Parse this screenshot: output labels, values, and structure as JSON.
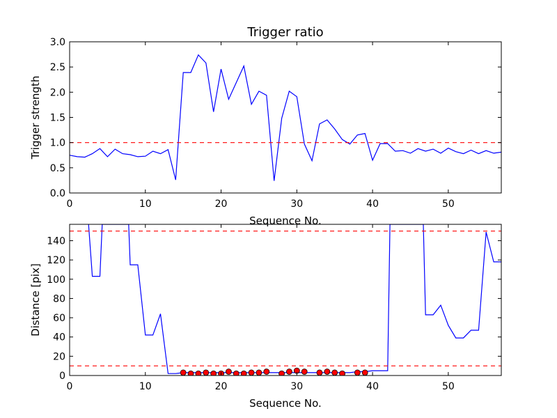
{
  "chart_data": [
    {
      "type": "line",
      "title": "Trigger ratio",
      "xlabel": "Sequence No.",
      "ylabel": "Trigger strength",
      "xlim": [
        0,
        57
      ],
      "ylim": [
        0,
        3.0
      ],
      "xticks": [
        0,
        10,
        20,
        30,
        40,
        50
      ],
      "xtick_labels": [
        "0",
        "10",
        "20",
        "30",
        "40",
        "50"
      ],
      "yticks": [
        0,
        0.5,
        1.0,
        1.5,
        2.0,
        2.5,
        3.0
      ],
      "ytick_labels": [
        "0.0",
        "0.5",
        "1.0",
        "1.5",
        "2.0",
        "2.5",
        "3.0"
      ],
      "grid": false,
      "series": [
        {
          "color": "#0000ff",
          "x": [
            0,
            1,
            2,
            3,
            4,
            5,
            6,
            7,
            8,
            9,
            10,
            11,
            12,
            13,
            14,
            15,
            16,
            17,
            18,
            19,
            20,
            21,
            22,
            23,
            24,
            25,
            26,
            27,
            28,
            29,
            30,
            31,
            32,
            33,
            34,
            35,
            36,
            37,
            38,
            39,
            40,
            41,
            42,
            43,
            44,
            45,
            46,
            47,
            48,
            49,
            50,
            51,
            52,
            53,
            54,
            55,
            56,
            57
          ],
          "y": [
            0.75,
            0.72,
            0.71,
            0.78,
            0.88,
            0.72,
            0.87,
            0.78,
            0.76,
            0.72,
            0.73,
            0.83,
            0.78,
            0.86,
            0.26,
            2.39,
            2.39,
            2.74,
            2.58,
            1.61,
            2.46,
            1.86,
            2.19,
            2.52,
            1.76,
            2.02,
            1.94,
            0.24,
            1.48,
            2.02,
            1.91,
            0.97,
            0.64,
            1.37,
            1.45,
            1.27,
            1.06,
            0.97,
            1.15,
            1.18,
            0.65,
            0.98,
            0.98,
            0.83,
            0.84,
            0.79,
            0.88,
            0.83,
            0.87,
            0.79,
            0.89,
            0.82,
            0.78,
            0.85,
            0.78,
            0.84,
            0.79,
            0.81
          ]
        }
      ],
      "hlines": [
        {
          "y": 1.0,
          "color": "#ff0000",
          "style": "dashed"
        }
      ]
    },
    {
      "type": "line",
      "title": "",
      "xlabel": "Sequence No.",
      "ylabel": "Distance [pix]",
      "xlim": [
        0,
        57
      ],
      "ylim": [
        0,
        157
      ],
      "xticks": [
        0,
        10,
        20,
        30,
        40,
        50
      ],
      "xtick_labels": [
        "0",
        "10",
        "20",
        "30",
        "40",
        "50"
      ],
      "yticks": [
        0,
        20,
        40,
        60,
        80,
        100,
        120,
        140
      ],
      "ytick_labels": [
        "0",
        "20",
        "40",
        "60",
        "80",
        "100",
        "120",
        "140"
      ],
      "grid": false,
      "series": [
        {
          "color": "#0000ff",
          "x": [
            2.5,
            3,
            4,
            4.3,
            7.8,
            8,
            9,
            10,
            11,
            12,
            13,
            14,
            15,
            16,
            17,
            18,
            19,
            20,
            21,
            22,
            23,
            24,
            25,
            26,
            27,
            28,
            29,
            30,
            31,
            32,
            33,
            34,
            35,
            36,
            37,
            38,
            39,
            40,
            41,
            42,
            42.3,
            46.7,
            47,
            48,
            49,
            50,
            51,
            52,
            53,
            54,
            55,
            56,
            57
          ],
          "y": [
            157,
            103,
            103,
            157,
            157,
            115,
            115,
            42,
            42,
            64,
            2,
            2,
            3,
            3,
            3,
            3,
            3,
            3,
            3,
            3,
            3,
            3,
            3,
            3,
            3,
            3,
            3,
            3,
            3,
            3,
            3,
            3,
            3,
            3,
            3,
            4,
            4,
            5,
            5,
            5,
            157,
            157,
            63,
            63,
            73,
            52,
            39,
            39,
            47,
            47,
            149,
            118,
            118
          ]
        }
      ],
      "markers": {
        "color": "#ff0000",
        "edge_color": "#000000",
        "x": [
          15,
          16,
          17,
          18,
          19,
          20,
          21,
          22,
          23,
          24,
          25,
          26,
          28,
          29,
          30,
          31,
          33,
          34,
          35,
          36,
          38,
          39
        ],
        "y": [
          3,
          2,
          2,
          3,
          2,
          2,
          4,
          2,
          2,
          3,
          3,
          4,
          2,
          4,
          5,
          4,
          3,
          4,
          3,
          2,
          3,
          3
        ]
      },
      "hlines": [
        {
          "y": 150,
          "color": "#ff0000",
          "style": "dashed"
        },
        {
          "y": 10,
          "color": "#ff0000",
          "style": "dashed"
        }
      ]
    }
  ]
}
